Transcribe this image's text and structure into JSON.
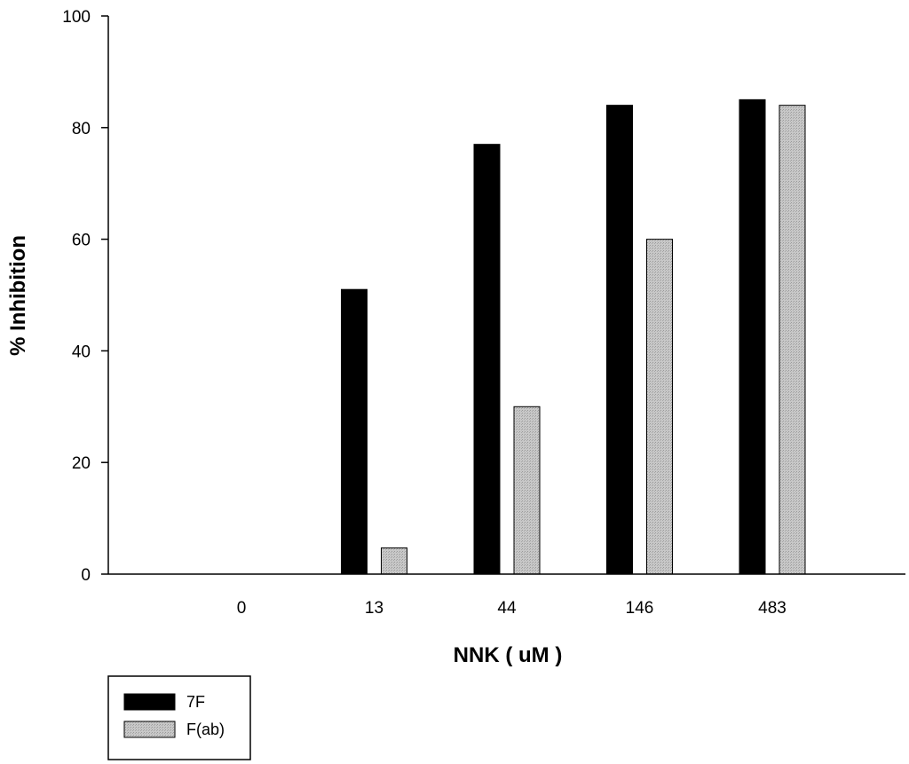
{
  "chart_data": {
    "type": "bar",
    "title": "",
    "xlabel": "NNK ( uM )",
    "ylabel": "% Inhibition",
    "categories": [
      "0",
      "13",
      "44",
      "146",
      "483"
    ],
    "series": [
      {
        "name": "7F",
        "color": "#000000",
        "values": [
          0,
          51,
          77,
          84,
          85
        ]
      },
      {
        "name": "F(ab)",
        "color": "#c0c0c0",
        "pattern": "dotted-gray",
        "values": [
          0,
          4.7,
          30,
          60,
          84
        ]
      }
    ],
    "ylim": [
      0,
      100
    ],
    "yticks": [
      0,
      20,
      40,
      60,
      80,
      100
    ],
    "grid": false,
    "legend_position": "bottom-left"
  }
}
